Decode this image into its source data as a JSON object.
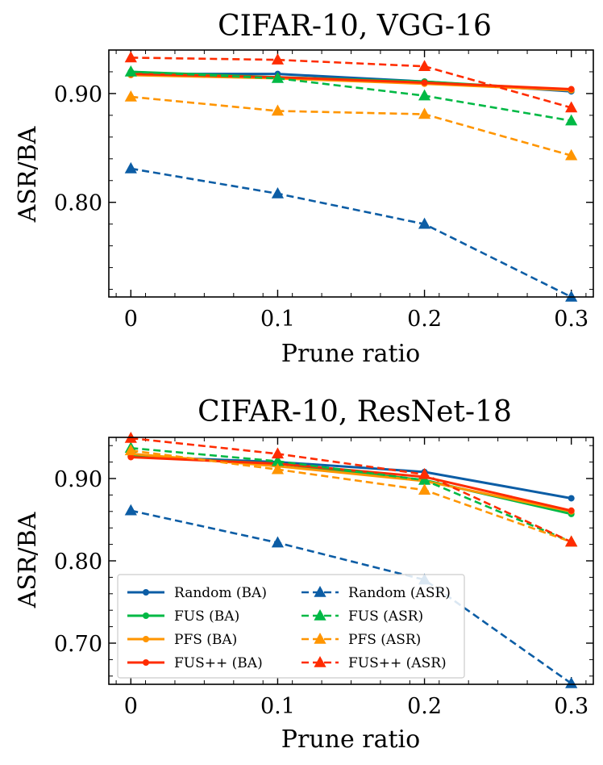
{
  "chart_data": [
    {
      "type": "line",
      "title": "CIFAR-10, VGG-16",
      "xlabel": "Prune ratio",
      "ylabel": "ASR/BA",
      "x": [
        0,
        0.1,
        0.2,
        0.3
      ],
      "xticks": [
        "0",
        "0.1",
        "0.2",
        "0.3"
      ],
      "yticks": [
        "0.80",
        "0.90"
      ],
      "xlim": [
        -0.015,
        0.315
      ],
      "ylim": [
        0.713,
        0.94
      ],
      "grid": false,
      "series": [
        {
          "name": "Random (BA)",
          "style": "solid",
          "marker": "circle",
          "color": "#0c5da5",
          "values": [
            0.918,
            0.918,
            0.911,
            0.902
          ]
        },
        {
          "name": "FUS (BA)",
          "style": "solid",
          "marker": "circle",
          "color": "#00b945",
          "values": [
            0.92,
            0.915,
            0.911,
            0.903
          ]
        },
        {
          "name": "PFS (BA)",
          "style": "solid",
          "marker": "circle",
          "color": "#ff9500",
          "values": [
            0.917,
            0.914,
            0.909,
            0.903
          ]
        },
        {
          "name": "FUS++ (BA)",
          "style": "solid",
          "marker": "circle",
          "color": "#ff2c00",
          "values": [
            0.918,
            0.915,
            0.91,
            0.904
          ]
        },
        {
          "name": "Random (ASR)",
          "style": "dashed",
          "marker": "triangle",
          "color": "#0c5da5",
          "values": [
            0.831,
            0.808,
            0.78,
            0.713
          ]
        },
        {
          "name": "FUS (ASR)",
          "style": "dashed",
          "marker": "triangle",
          "color": "#00b945",
          "values": [
            0.92,
            0.914,
            0.898,
            0.875
          ]
        },
        {
          "name": "PFS (ASR)",
          "style": "dashed",
          "marker": "triangle",
          "color": "#ff9500",
          "values": [
            0.897,
            0.884,
            0.881,
            0.843
          ]
        },
        {
          "name": "FUS++ (ASR)",
          "style": "dashed",
          "marker": "triangle",
          "color": "#ff2c00",
          "values": [
            0.933,
            0.931,
            0.925,
            0.887
          ]
        }
      ]
    },
    {
      "type": "line",
      "title": "CIFAR-10, ResNet-18",
      "xlabel": "Prune ratio",
      "ylabel": "ASR/BA",
      "x": [
        0,
        0.1,
        0.2,
        0.3
      ],
      "xticks": [
        "0",
        "0.1",
        "0.2",
        "0.3"
      ],
      "yticks": [
        "0.70",
        "0.80",
        "0.90"
      ],
      "xlim": [
        -0.015,
        0.315
      ],
      "ylim": [
        0.65,
        0.95
      ],
      "grid": false,
      "legend": "lower-left",
      "legend_columns": 2,
      "series": [
        {
          "name": "Random (BA)",
          "style": "solid",
          "marker": "circle",
          "color": "#0c5da5",
          "values": [
            0.927,
            0.92,
            0.908,
            0.876
          ]
        },
        {
          "name": "FUS (BA)",
          "style": "solid",
          "marker": "circle",
          "color": "#00b945",
          "values": [
            0.927,
            0.918,
            0.898,
            0.857
          ]
        },
        {
          "name": "PFS (BA)",
          "style": "solid",
          "marker": "circle",
          "color": "#ff9500",
          "values": [
            0.93,
            0.915,
            0.897,
            0.86
          ]
        },
        {
          "name": "FUS++ (BA)",
          "style": "solid",
          "marker": "circle",
          "color": "#ff2c00",
          "values": [
            0.926,
            0.918,
            0.902,
            0.861
          ]
        },
        {
          "name": "Random (ASR)",
          "style": "dashed",
          "marker": "triangle",
          "color": "#0c5da5",
          "values": [
            0.861,
            0.822,
            0.777,
            0.651
          ]
        },
        {
          "name": "FUS (ASR)",
          "style": "dashed",
          "marker": "triangle",
          "color": "#00b945",
          "values": [
            0.937,
            0.921,
            0.898,
            0.823
          ]
        },
        {
          "name": "PFS (ASR)",
          "style": "dashed",
          "marker": "triangle",
          "color": "#ff9500",
          "values": [
            0.934,
            0.911,
            0.886,
            0.823
          ]
        },
        {
          "name": "FUS++ (ASR)",
          "style": "dashed",
          "marker": "triangle",
          "color": "#ff2c00",
          "values": [
            0.949,
            0.93,
            0.905,
            0.823
          ]
        }
      ]
    }
  ]
}
